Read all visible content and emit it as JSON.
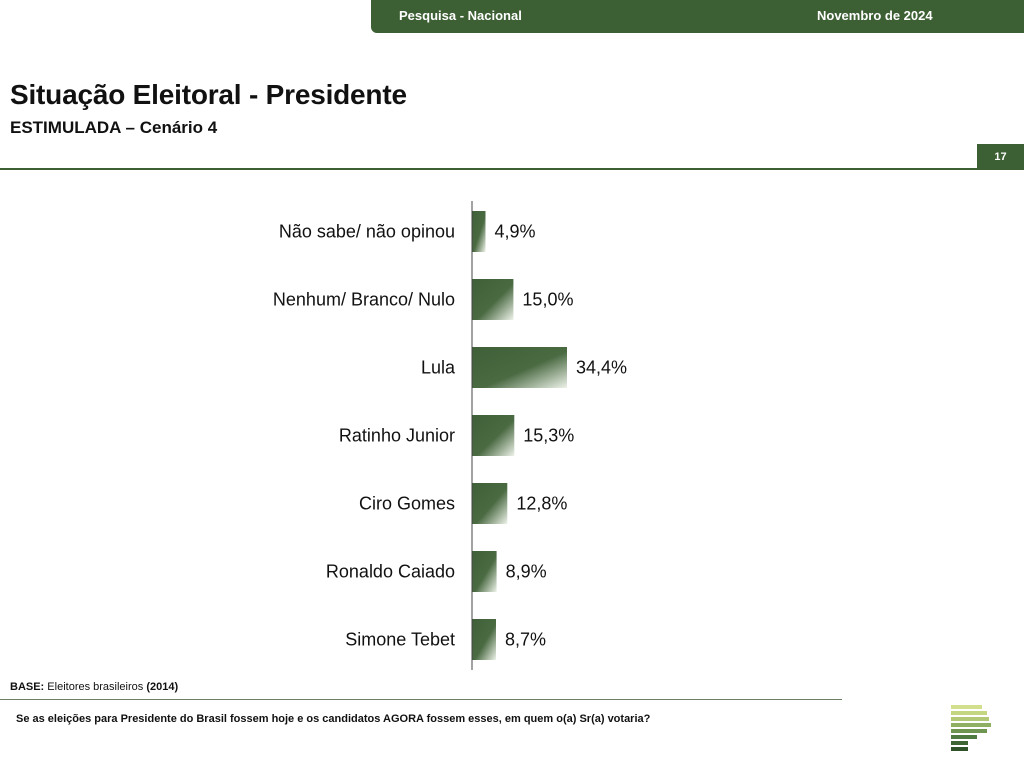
{
  "header": {
    "survey_label": "Pesquisa - Nacional",
    "date_label": "Novembro de 2024",
    "page_number": "17"
  },
  "title": "Situação Eleitoral - Presidente",
  "subtitle": "ESTIMULADA – Cenário 4",
  "base_note": {
    "label": "BASE:",
    "text": "Eleitores brasileiros",
    "count": "(2014)"
  },
  "question": "Se as eleições para Presidente do Brasil fossem hoje e os candidatos AGORA fossem esses, em quem o(a) Sr(a) votaria?",
  "colors": {
    "brand_green": "#3d5f34",
    "bar_dark": "#3f5f38",
    "bar_light": "#eef3ea",
    "logo_light": "#c8db8a"
  },
  "logo": {
    "icon": "stacked-bars-logo-icon"
  },
  "chart_data": {
    "type": "bar",
    "orientation": "horizontal",
    "categories": [
      "Não sabe/ não opinou",
      "Nenhum/ Branco/ Nulo",
      "Lula",
      "Ratinho Junior",
      "Ciro Gomes",
      "Ronaldo Caiado",
      "Simone Tebet"
    ],
    "values": [
      4.9,
      15.0,
      34.4,
      15.3,
      12.8,
      8.9,
      8.7
    ],
    "value_labels": [
      "4,9%",
      "15,0%",
      "34,4%",
      "15,3%",
      "12,8%",
      "8,9%",
      "8,7%"
    ],
    "unit": "%",
    "xlim": [
      0,
      34.4
    ],
    "grid": false,
    "legend": "none"
  }
}
